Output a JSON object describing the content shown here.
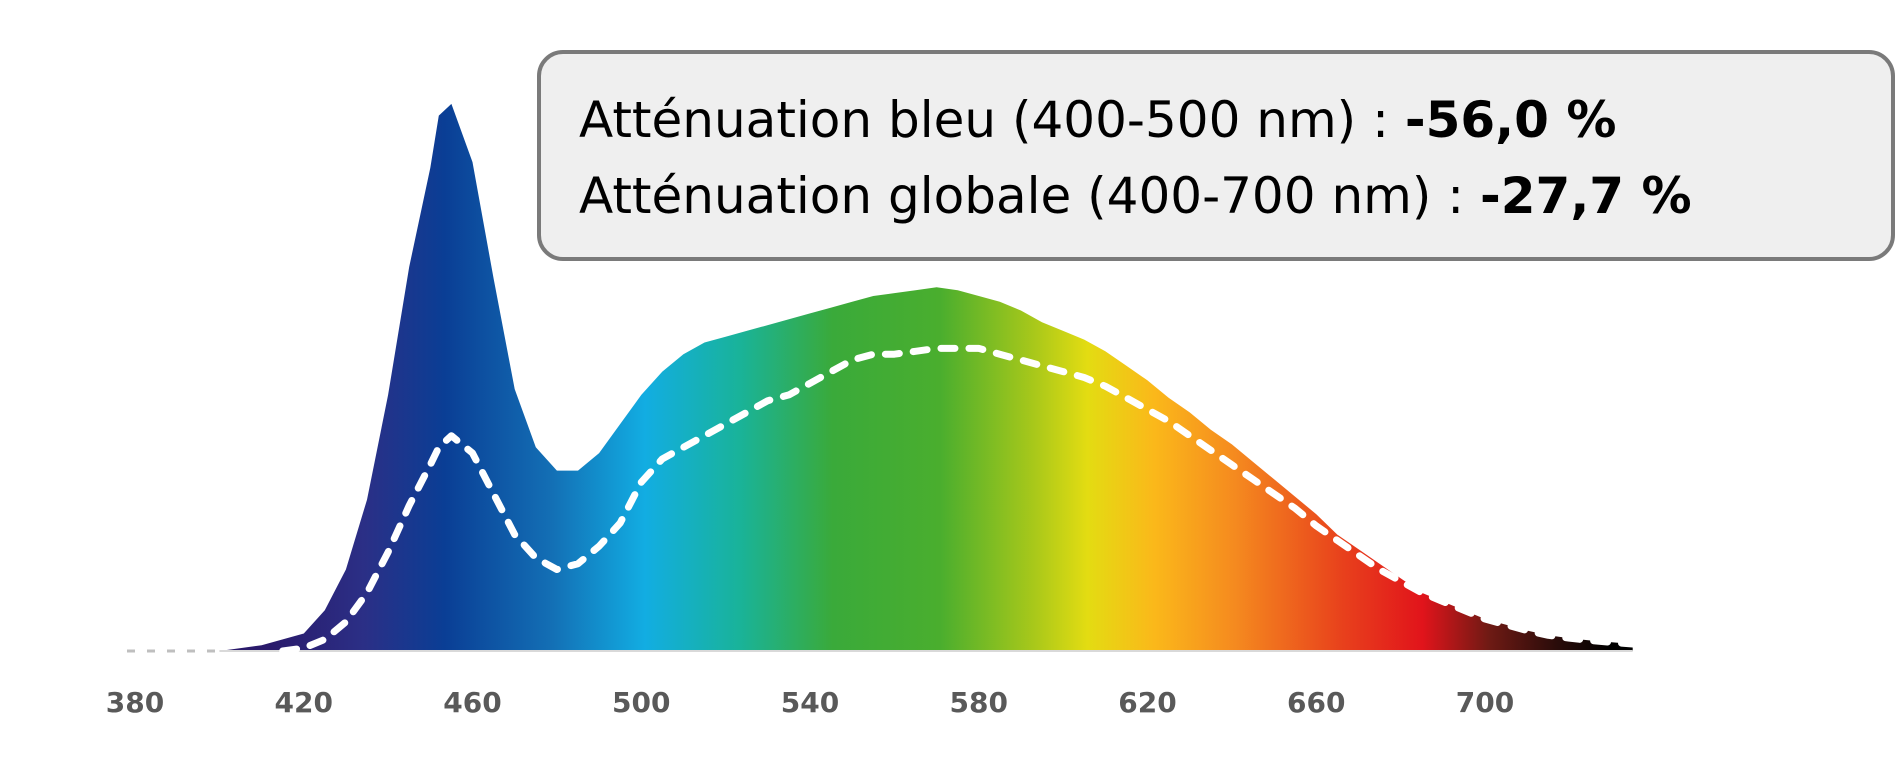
{
  "annotation": {
    "line1_label": "Atténuation bleu (400-500 nm) : ",
    "line1_value": "-56,0 %",
    "line2_label": "Atténuation globale (400-700 nm) : ",
    "line2_value": "-27,7 %"
  },
  "chart_data": {
    "type": "area",
    "title": "",
    "xlabel": "",
    "ylabel": "",
    "xlim": [
      380,
      735
    ],
    "ylim": [
      0,
      1.05
    ],
    "xticks": [
      380,
      420,
      460,
      500,
      540,
      580,
      620,
      660,
      700
    ],
    "grid": false,
    "legend": "none",
    "fill": "visible-spectrum rainbow gradient",
    "series": [
      {
        "style": "filled-area",
        "x": [
          380,
          400,
          405,
          410,
          415,
          420,
          425,
          430,
          435,
          440,
          445,
          450,
          452,
          455,
          460,
          465,
          470,
          475,
          480,
          485,
          490,
          495,
          500,
          505,
          510,
          515,
          520,
          525,
          530,
          535,
          540,
          545,
          550,
          555,
          560,
          565,
          570,
          575,
          580,
          585,
          590,
          595,
          600,
          605,
          610,
          615,
          620,
          625,
          630,
          635,
          640,
          645,
          650,
          655,
          660,
          665,
          670,
          675,
          680,
          685,
          690,
          695,
          700,
          705,
          710,
          715,
          720,
          725,
          730,
          735
        ],
        "y": [
          0,
          0,
          0.005,
          0.01,
          0.02,
          0.03,
          0.07,
          0.14,
          0.26,
          0.44,
          0.66,
          0.83,
          0.92,
          0.94,
          0.84,
          0.64,
          0.45,
          0.35,
          0.31,
          0.31,
          0.34,
          0.39,
          0.44,
          0.48,
          0.51,
          0.53,
          0.54,
          0.55,
          0.56,
          0.57,
          0.58,
          0.59,
          0.6,
          0.61,
          0.615,
          0.62,
          0.625,
          0.62,
          0.61,
          0.6,
          0.585,
          0.565,
          0.55,
          0.535,
          0.515,
          0.49,
          0.465,
          0.435,
          0.41,
          0.38,
          0.355,
          0.325,
          0.295,
          0.265,
          0.235,
          0.2,
          0.175,
          0.15,
          0.125,
          0.1,
          0.085,
          0.07,
          0.055,
          0.045,
          0.035,
          0.027,
          0.022,
          0.018,
          0.015,
          0.012
        ]
      },
      {
        "style": "white-dashed-line",
        "x": [
          380,
          400,
          405,
          410,
          415,
          420,
          425,
          430,
          435,
          440,
          445,
          450,
          452,
          455,
          460,
          465,
          470,
          475,
          480,
          485,
          490,
          495,
          500,
          505,
          510,
          515,
          520,
          525,
          530,
          535,
          540,
          545,
          550,
          555,
          560,
          565,
          570,
          575,
          580,
          585,
          590,
          595,
          600,
          605,
          610,
          615,
          620,
          625,
          630,
          635,
          640,
          645,
          650,
          655,
          660,
          665,
          670,
          675,
          680,
          685,
          690,
          695,
          700,
          705,
          710,
          715,
          720,
          725,
          730,
          735
        ],
        "y": [
          0,
          0,
          0,
          0,
          0,
          0.005,
          0.02,
          0.05,
          0.1,
          0.17,
          0.25,
          0.32,
          0.35,
          0.37,
          0.34,
          0.27,
          0.2,
          0.16,
          0.14,
          0.15,
          0.18,
          0.22,
          0.29,
          0.33,
          0.35,
          0.37,
          0.39,
          0.41,
          0.43,
          0.44,
          0.46,
          0.48,
          0.5,
          0.51,
          0.51,
          0.515,
          0.52,
          0.52,
          0.52,
          0.51,
          0.5,
          0.49,
          0.48,
          0.47,
          0.455,
          0.435,
          0.415,
          0.395,
          0.37,
          0.345,
          0.32,
          0.295,
          0.27,
          0.245,
          0.215,
          0.19,
          0.165,
          0.14,
          0.12,
          0.1,
          0.085,
          0.07,
          0.055,
          0.045,
          0.035,
          0.027,
          0.022,
          0.018,
          0.015,
          0.012
        ]
      }
    ]
  }
}
